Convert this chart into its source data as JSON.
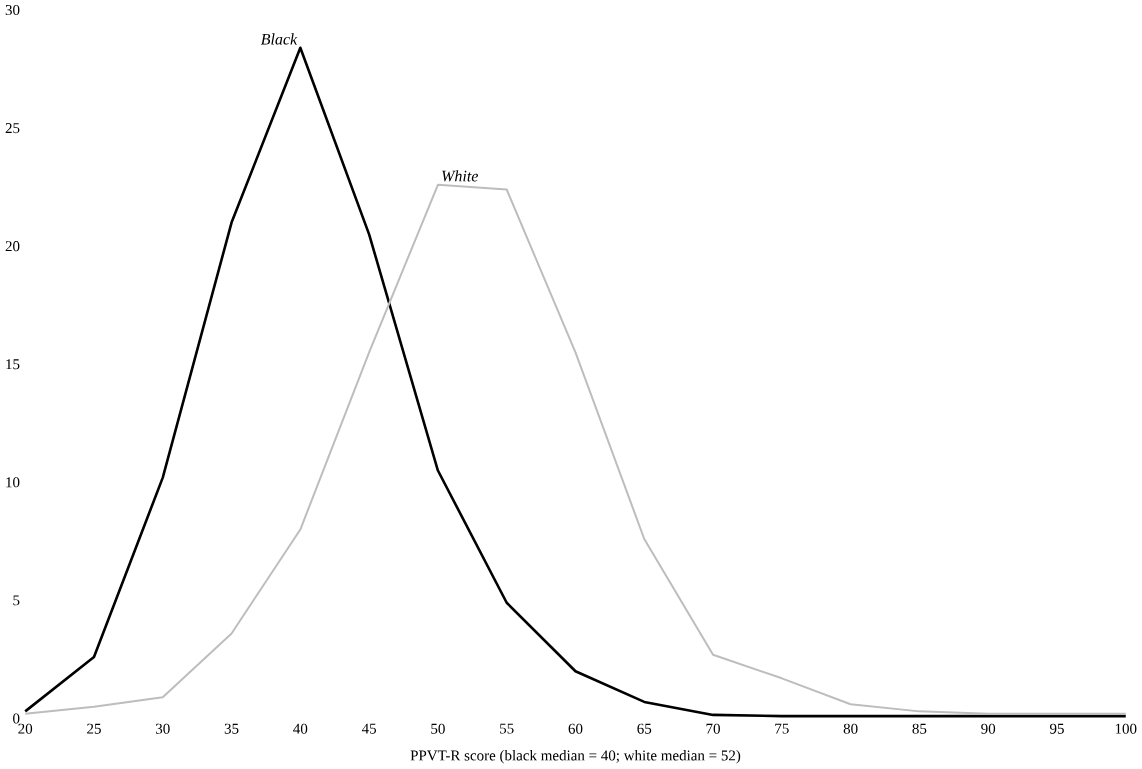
{
  "chart_data": {
    "type": "line",
    "xlabel": "PPVT-R score (black median = 40; white median = 52)",
    "x": [
      20,
      25,
      30,
      35,
      40,
      45,
      50,
      55,
      60,
      65,
      70,
      75,
      80,
      85,
      90,
      95,
      100
    ],
    "series": [
      {
        "name": "Black",
        "color": "#000000",
        "values": [
          0.3,
          2.6,
          10.2,
          21,
          28.4,
          20.5,
          10.5,
          4.9,
          2.0,
          0.7,
          0.15,
          0.1,
          0.1,
          0.1,
          0.1,
          0.1,
          0.1
        ]
      },
      {
        "name": "White",
        "color": "#bdbdbd",
        "values": [
          0.2,
          0.5,
          0.9,
          3.6,
          8,
          15.5,
          22.6,
          22.4,
          15.5,
          7.6,
          2.7,
          1.7,
          0.6,
          0.3,
          0.2,
          0.2,
          0.2
        ]
      }
    ],
    "xlim": [
      20,
      100
    ],
    "ylim": [
      0,
      30
    ],
    "xticks": [
      20,
      25,
      30,
      35,
      40,
      45,
      50,
      55,
      60,
      65,
      70,
      75,
      80,
      85,
      90,
      95,
      100
    ],
    "yticks": [
      0,
      5,
      10,
      15,
      20,
      25,
      30
    ],
    "grid": false,
    "legend": false,
    "marker": "none",
    "line_style": "solid"
  }
}
